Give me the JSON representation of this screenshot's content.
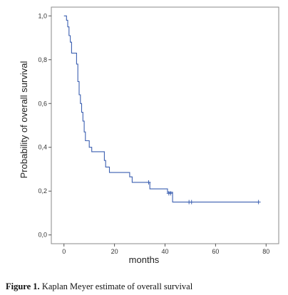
{
  "chart_data": {
    "type": "line",
    "subtype": "step",
    "title": "",
    "xlabel": "months",
    "ylabel": "Probability of overall survival",
    "xlim": [
      -5,
      85
    ],
    "ylim": [
      -0.04,
      1.04
    ],
    "x_ticks": [
      "0",
      "20",
      "40",
      "60",
      "80"
    ],
    "y_ticks": [
      "0,0",
      "0,2",
      "0,4",
      "0,6",
      "0,8",
      "1,0"
    ],
    "grid": false,
    "legend": "none",
    "line_color": "#3b5fb0",
    "series": [
      {
        "points": [
          [
            0,
            1.0
          ],
          [
            1,
            0.98
          ],
          [
            1.5,
            0.95
          ],
          [
            2,
            0.91
          ],
          [
            2.5,
            0.88
          ],
          [
            3,
            0.83
          ],
          [
            5,
            0.78
          ],
          [
            5.5,
            0.7
          ],
          [
            6,
            0.64
          ],
          [
            6.5,
            0.6
          ],
          [
            7,
            0.56
          ],
          [
            7.5,
            0.52
          ],
          [
            8,
            0.47
          ],
          [
            8.5,
            0.43
          ],
          [
            10,
            0.4
          ],
          [
            11,
            0.38
          ],
          [
            16,
            0.34
          ],
          [
            16.5,
            0.31
          ],
          [
            18,
            0.285
          ],
          [
            26,
            0.265
          ],
          [
            27,
            0.24
          ],
          [
            33,
            0.24
          ],
          [
            34,
            0.21
          ],
          [
            41,
            0.195
          ],
          [
            43,
            0.15
          ],
          [
            77,
            0.15
          ]
        ],
        "censored": [
          [
            33.5,
            0.24
          ],
          [
            41.5,
            0.19
          ],
          [
            42.2,
            0.19
          ],
          [
            49.5,
            0.15
          ],
          [
            50.5,
            0.15
          ],
          [
            77,
            0.15
          ]
        ]
      }
    ]
  },
  "caption": {
    "label": "Figure 1.",
    "text": " Kaplan Meyer estimate of overall survival"
  }
}
